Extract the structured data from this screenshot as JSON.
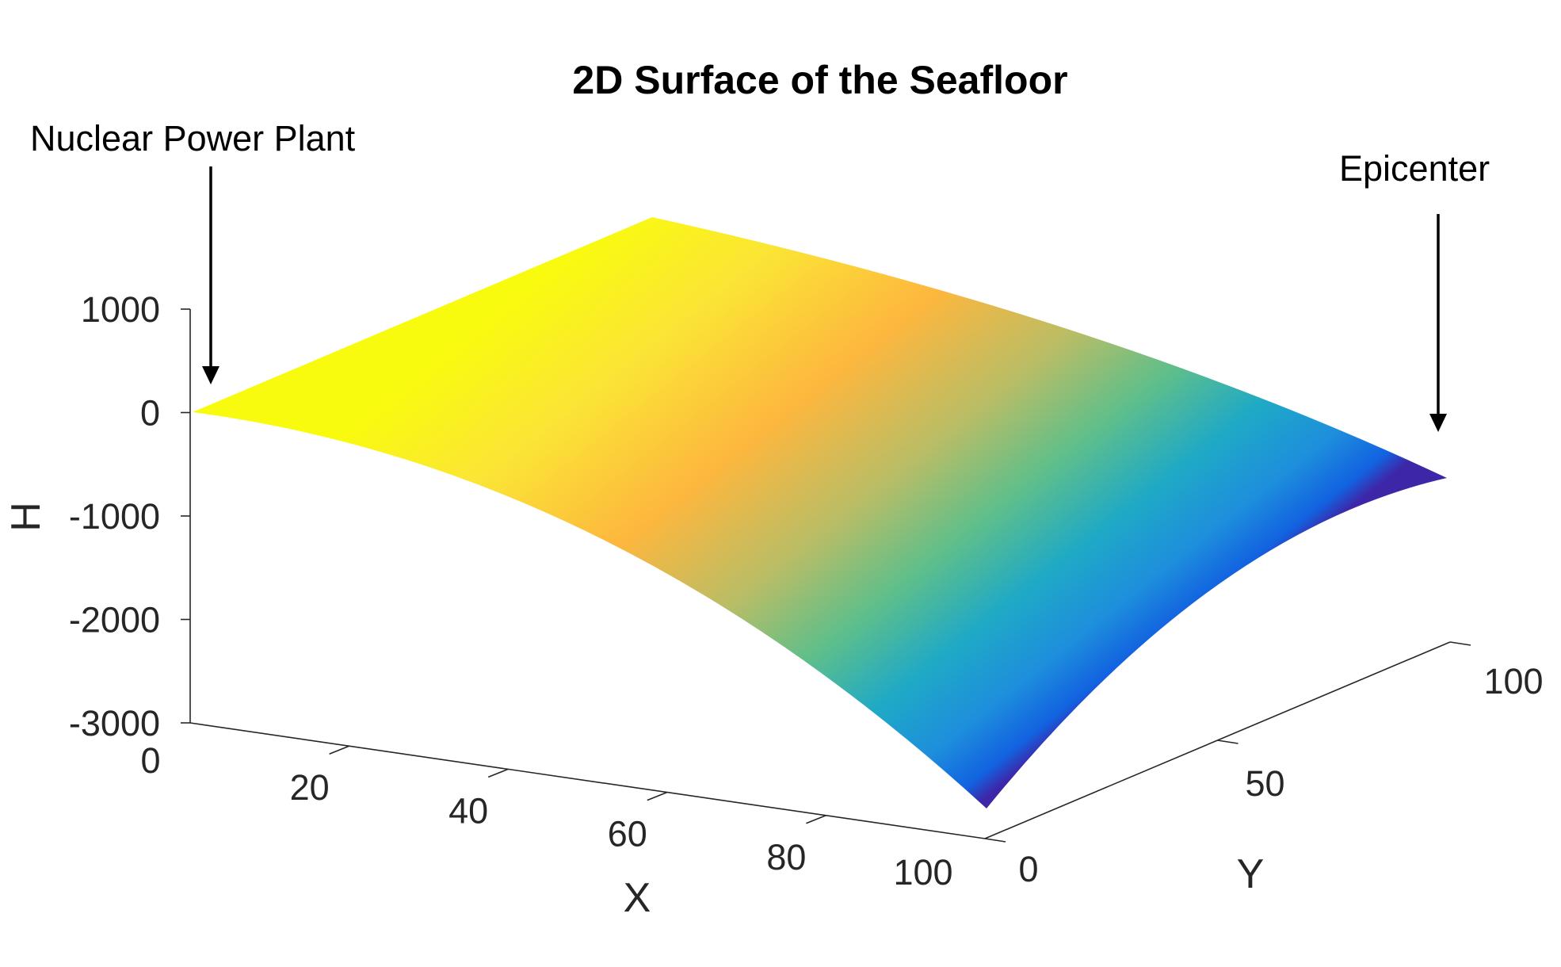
{
  "chart_data": {
    "type": "surface",
    "title": "2D Surface of the Seafloor",
    "xlabel": "X",
    "ylabel": "Y",
    "zlabel": "H",
    "xlim": [
      0,
      100
    ],
    "ylim": [
      0,
      100
    ],
    "zlim": [
      -3000,
      1000
    ],
    "x_ticks": [
      "0",
      "20",
      "40",
      "60",
      "80",
      "100"
    ],
    "y_ticks": [
      "0",
      "50",
      "100"
    ],
    "z_ticks": [
      "1000",
      "0",
      "-1000",
      "-2000",
      "-3000"
    ],
    "colormap": [
      "#3e26a8",
      "#1268e0",
      "#1fa2d8",
      "#2bb7a5",
      "#7ec36b",
      "#fdb73e",
      "#fbe535",
      "#f9fb0e"
    ],
    "surface_corners": [
      {
        "x": 0,
        "y": 0,
        "h": 0
      },
      {
        "x": 0,
        "y": 100,
        "h": 0
      },
      {
        "x": 100,
        "y": 0,
        "h": -3000
      },
      {
        "x": 100,
        "y": 100,
        "h": -700
      }
    ],
    "annotations": [
      {
        "text": "Nuclear Power Plant",
        "x": 0,
        "y": 0
      },
      {
        "text": "Epicenter",
        "x": 100,
        "y": 100
      }
    ]
  }
}
